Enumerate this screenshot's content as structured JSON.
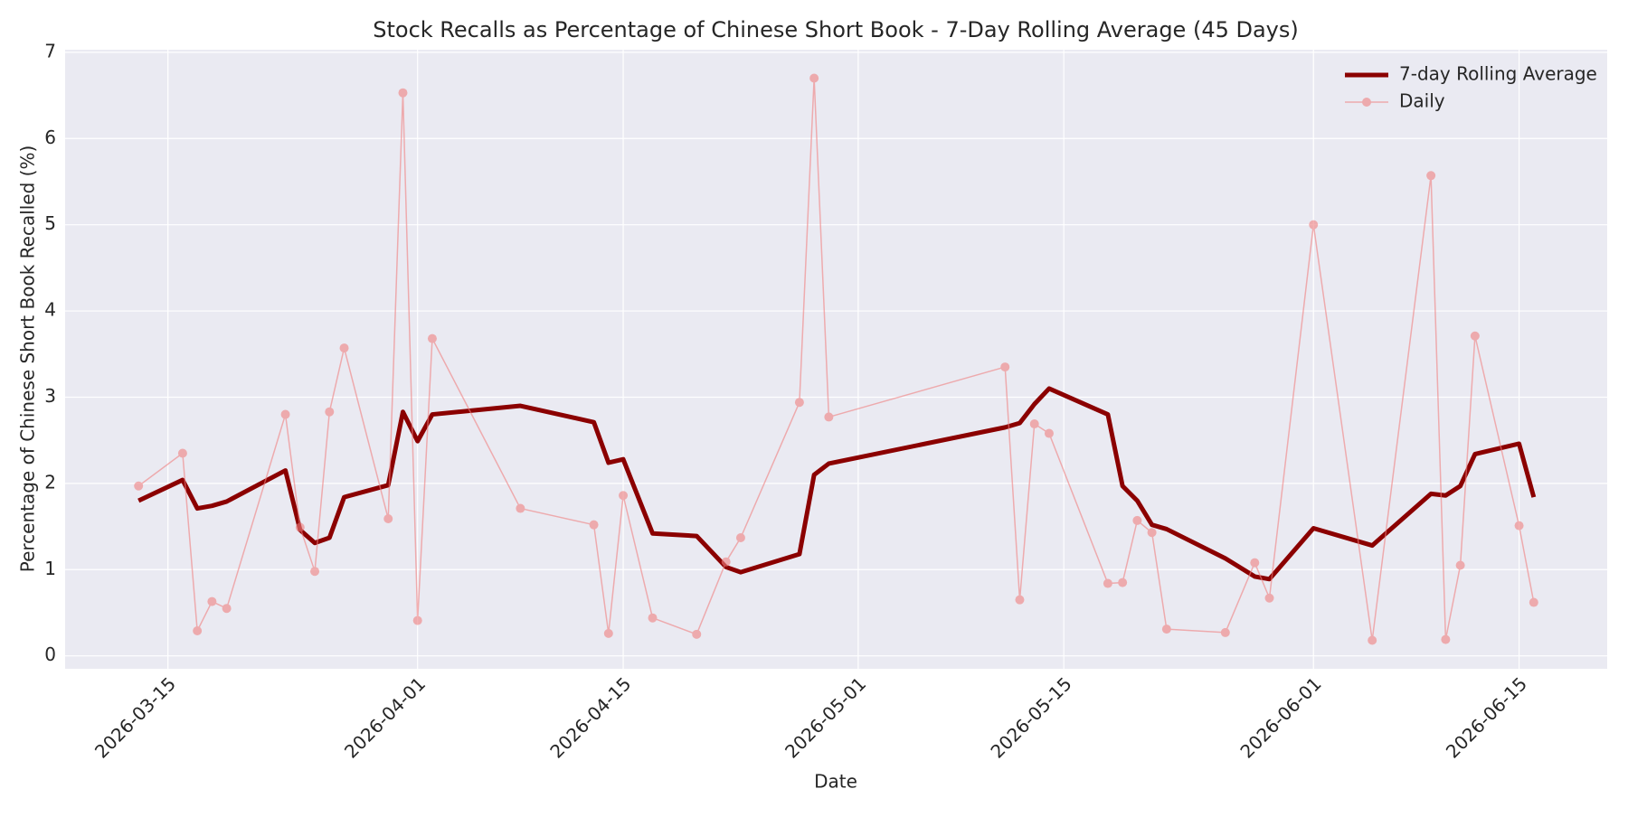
{
  "chart_data": {
    "type": "line",
    "title": "Stock Recalls as Percentage of Chinese Short Book - 7-Day Rolling Average (45 Days)",
    "x_label": "Date",
    "y_label": "Percentage of Chinese Short Book Recalled (%)",
    "x": [
      "2026-03-13",
      "2026-03-16",
      "2026-03-17",
      "2026-03-18",
      "2026-03-19",
      "2026-03-23",
      "2026-03-24",
      "2026-03-25",
      "2026-03-26",
      "2026-03-27",
      "2026-03-30",
      "2026-03-31",
      "2026-04-01",
      "2026-04-02",
      "2026-04-08",
      "2026-04-13",
      "2026-04-14",
      "2026-04-15",
      "2026-04-17",
      "2026-04-20",
      "2026-04-22",
      "2026-04-23",
      "2026-04-27",
      "2026-04-28",
      "2026-04-29",
      "2026-05-11",
      "2026-05-12",
      "2026-05-13",
      "2026-05-14",
      "2026-05-18",
      "2026-05-19",
      "2026-05-20",
      "2026-05-21",
      "2026-05-22",
      "2026-05-26",
      "2026-05-28",
      "2026-05-29",
      "2026-06-01",
      "2026-06-05",
      "2026-06-09",
      "2026-06-10",
      "2026-06-11",
      "2026-06-12",
      "2026-06-15",
      "2026-06-16"
    ],
    "series": [
      {
        "name": "7-day Rolling Average",
        "color": "#8b0000",
        "linewidth": 5,
        "marker": false,
        "values": [
          1.8,
          2.04,
          1.71,
          1.74,
          1.79,
          2.15,
          1.46,
          1.31,
          1.37,
          1.84,
          1.98,
          2.83,
          2.49,
          2.8,
          2.9,
          2.71,
          2.24,
          2.28,
          1.42,
          1.39,
          1.03,
          0.97,
          1.18,
          2.1,
          2.23,
          2.65,
          2.7,
          2.92,
          3.1,
          2.8,
          1.97,
          1.8,
          1.52,
          1.47,
          1.13,
          0.92,
          0.89,
          1.48,
          1.28,
          1.88,
          1.86,
          1.97,
          2.34,
          2.46,
          1.84
        ]
      },
      {
        "name": "Daily",
        "color": "#f08080",
        "linewidth": 1.5,
        "marker": true,
        "opacity": 0.6,
        "values": [
          1.97,
          2.35,
          0.29,
          0.63,
          0.55,
          2.8,
          1.49,
          0.98,
          2.83,
          3.57,
          1.59,
          6.53,
          0.41,
          3.68,
          1.71,
          1.52,
          0.26,
          1.86,
          0.44,
          0.25,
          1.09,
          1.37,
          2.94,
          6.7,
          2.77,
          3.35,
          0.65,
          2.69,
          2.58,
          0.84,
          0.85,
          1.57,
          1.43,
          0.31,
          0.27,
          1.08,
          0.67,
          5.0,
          0.18,
          5.57,
          0.19,
          1.05,
          3.71,
          1.51,
          0.62
        ]
      }
    ],
    "xlim": [
      "2026-03-08",
      "2026-06-21"
    ],
    "xticks": [
      "2026-03-15",
      "2026-04-01",
      "2026-04-15",
      "2026-05-01",
      "2026-05-15",
      "2026-06-01",
      "2026-06-15"
    ],
    "ylim": [
      -0.15,
      7.03
    ],
    "yticks": [
      0,
      1,
      2,
      3,
      4,
      5,
      6,
      7
    ],
    "grid": true,
    "legend": "upper right"
  }
}
